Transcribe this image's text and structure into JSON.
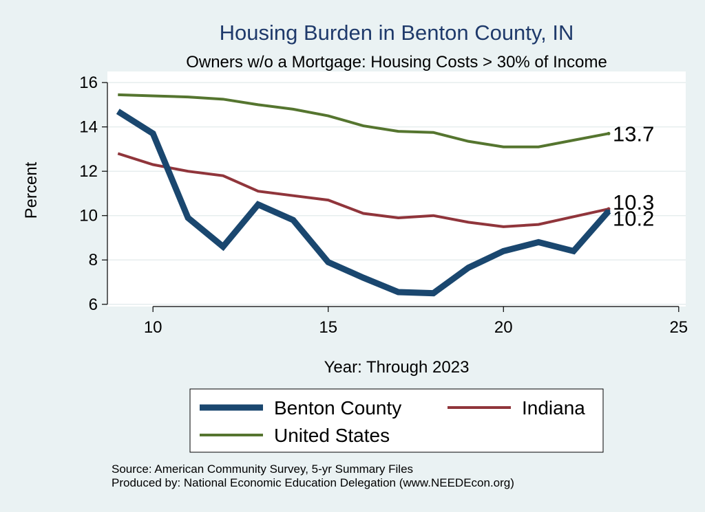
{
  "chart_data": {
    "type": "line",
    "title": "Housing Burden in Benton County, IN",
    "subtitle": "Owners w/o a Mortgage: Housing Costs > 30% of Income",
    "xlabel": "Year: Through 2023",
    "ylabel": "Percent",
    "xlim": [
      8.7,
      25.2
    ],
    "ylim": [
      5.9,
      16.5
    ],
    "xticks": [
      10,
      15,
      20,
      25
    ],
    "yticks": [
      6,
      8,
      10,
      12,
      14,
      16
    ],
    "x": [
      9,
      10,
      11,
      12,
      13,
      14,
      15,
      16,
      17,
      18,
      19,
      20,
      21,
      22,
      23
    ],
    "series": [
      {
        "name": "Benton County",
        "color": "#1a476f",
        "values": [
          14.7,
          13.7,
          9.9,
          8.6,
          10.5,
          9.8,
          7.9,
          7.2,
          6.55,
          6.5,
          7.65,
          8.4,
          8.8,
          8.4,
          10.2
        ],
        "end_label": "10.2"
      },
      {
        "name": "Indiana",
        "color": "#90353b",
        "values": [
          12.8,
          12.3,
          12.0,
          11.8,
          11.1,
          10.9,
          10.7,
          10.1,
          9.9,
          10.0,
          9.7,
          9.5,
          9.6,
          9.95,
          10.3
        ],
        "end_label": "10.3"
      },
      {
        "name": "United States",
        "color": "#55752f",
        "values": [
          15.45,
          15.4,
          15.35,
          15.25,
          15.0,
          14.8,
          14.5,
          14.05,
          13.8,
          13.75,
          13.35,
          13.1,
          13.1,
          13.4,
          13.7
        ],
        "end_label": "13.7"
      }
    ],
    "legend": {
      "position": "bottom",
      "items": [
        "Benton County",
        "Indiana",
        "United States"
      ]
    },
    "grid": true
  },
  "footer": {
    "source": "Source: American Community Survey, 5-yr Summary Files",
    "produced_by": "Produced by: National Economic Education Delegation (www.NEEDEcon.org)"
  }
}
